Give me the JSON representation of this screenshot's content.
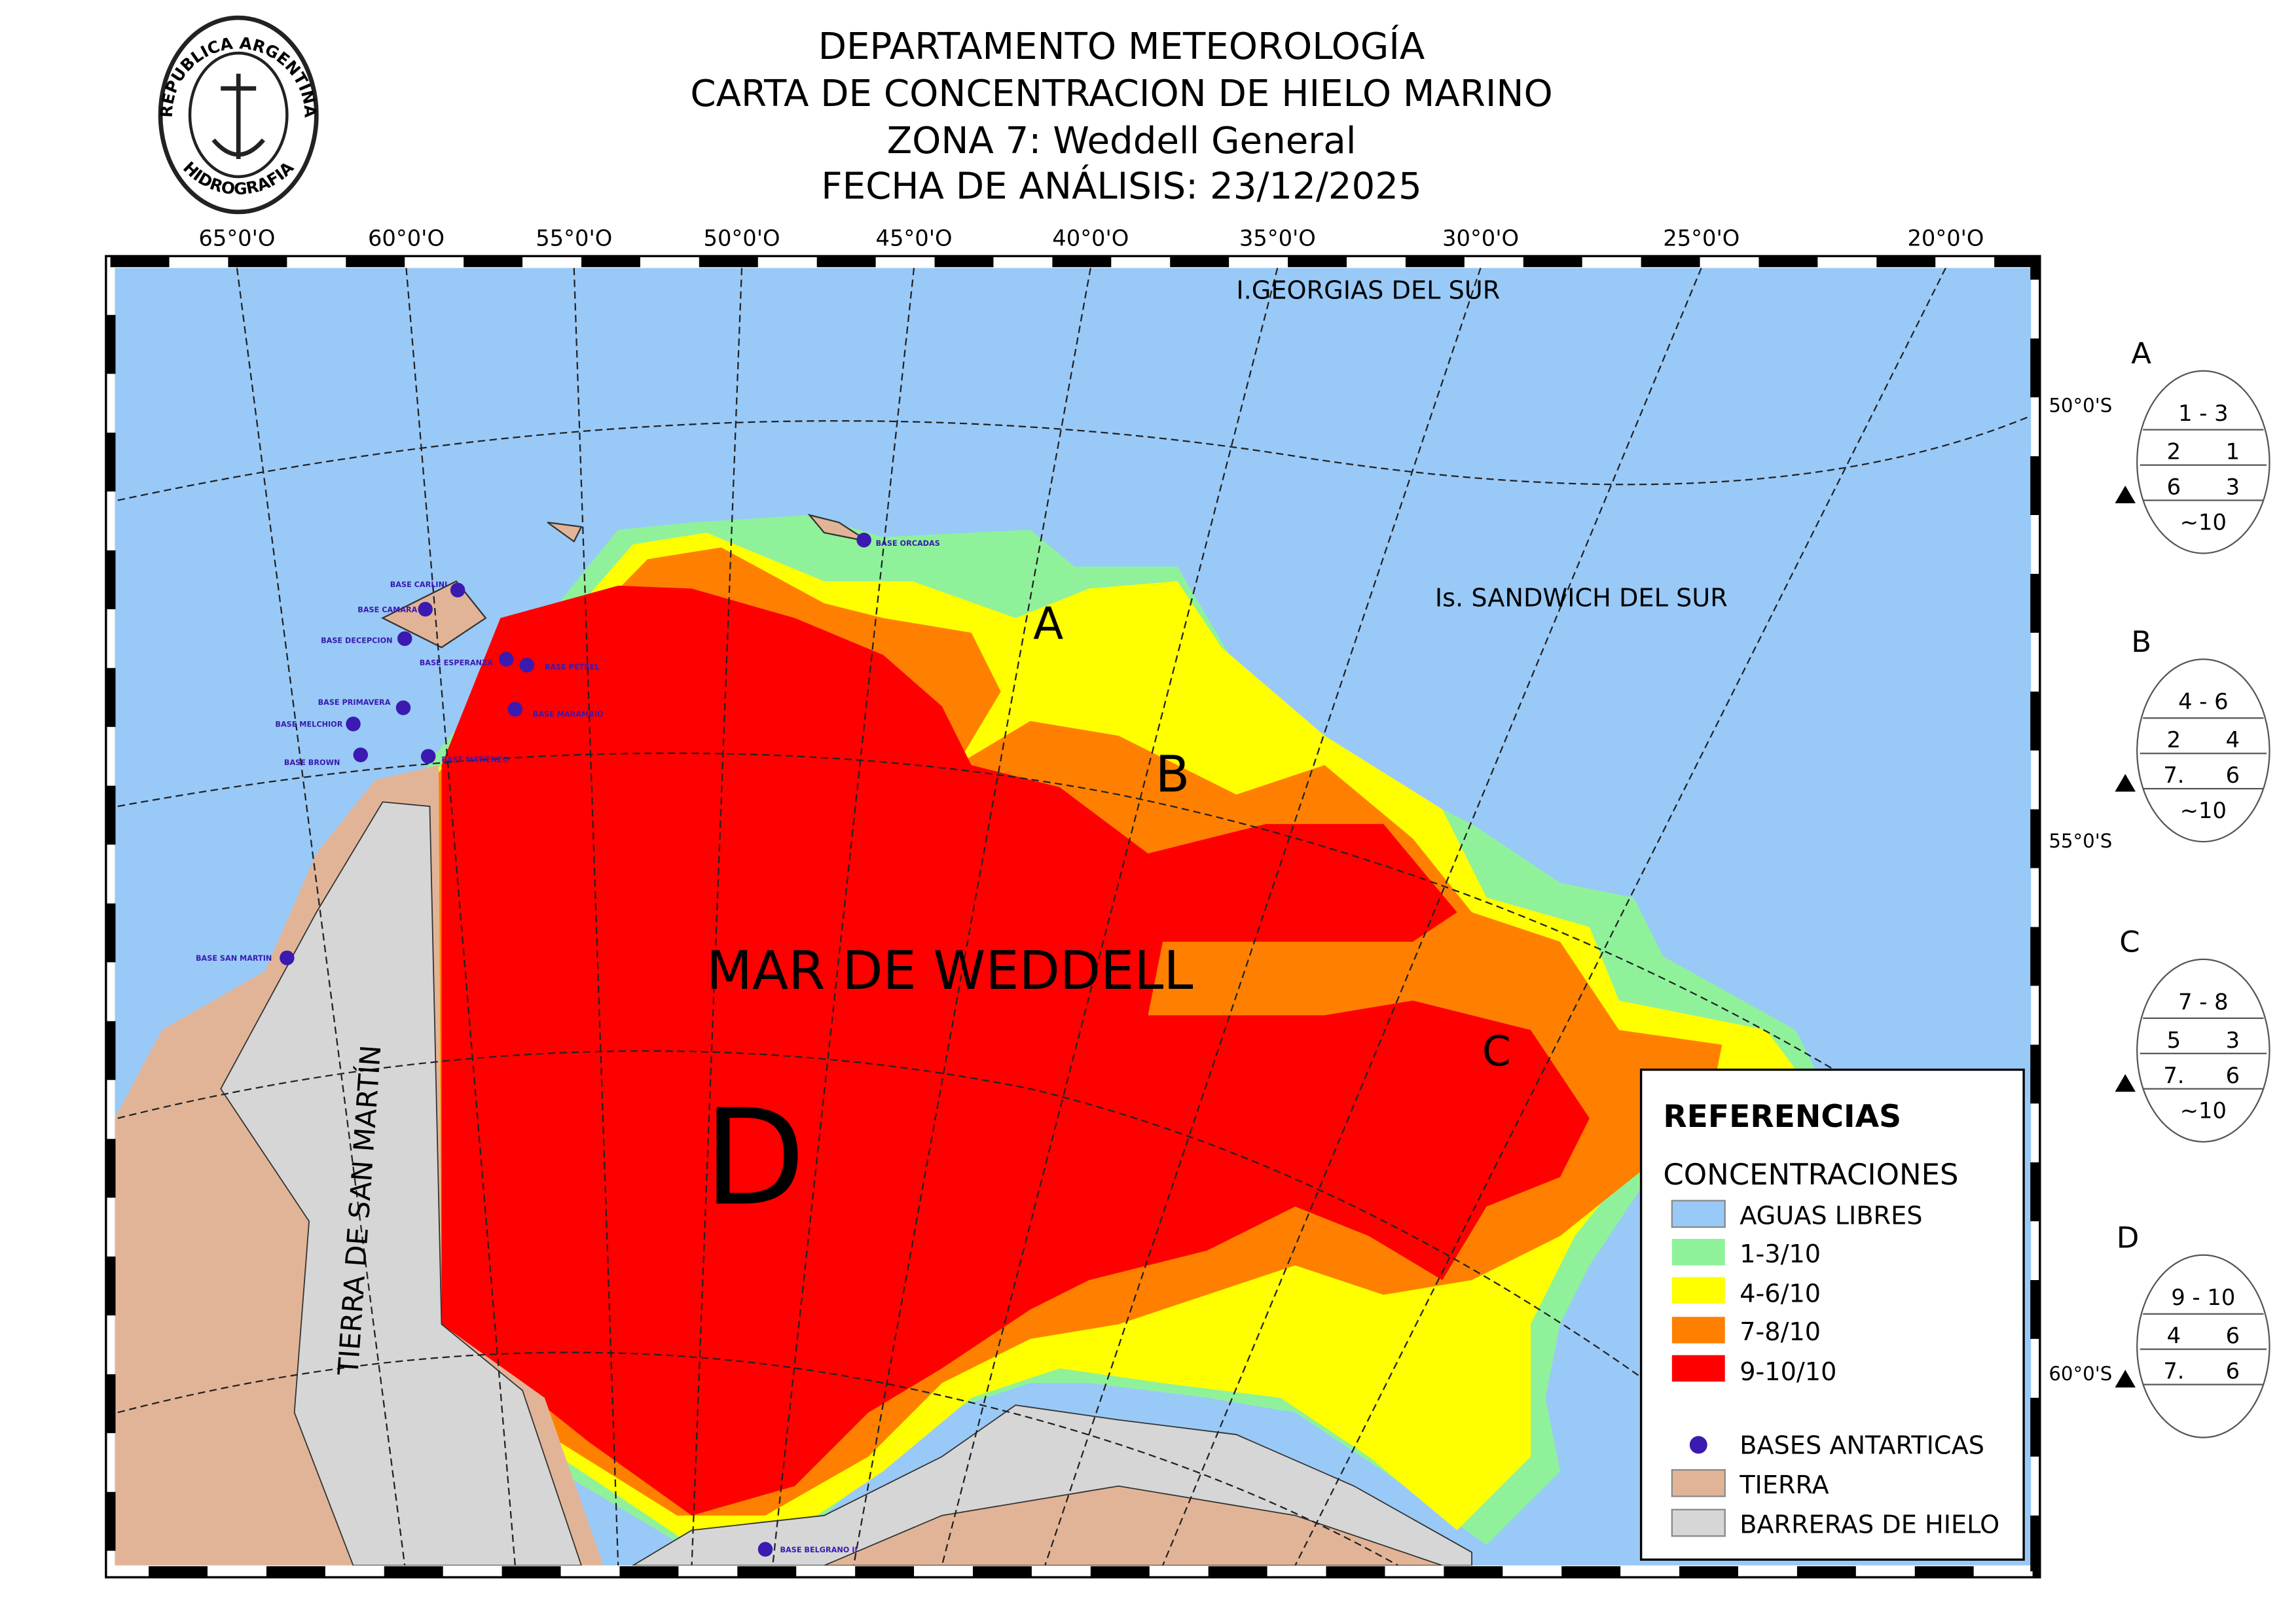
{
  "header": {
    "lines": [
      "DEPARTAMENTO METEOROLOGÍA",
      "CARTA DE CONCENTRACION DE HIELO MARINO",
      "ZONA 7: Weddell General",
      "FECHA DE ANÁLISIS: 23/12/2025"
    ]
  },
  "logo": {
    "top": "REPUBLICA ARGENTINA",
    "bottom": "HIDROGRAFIA"
  },
  "map": {
    "longitudes": [
      "65°0'O",
      "60°0'O",
      "55°0'O",
      "50°0'O",
      "45°0'O",
      "40°0'O",
      "35°0'O",
      "30°0'O",
      "25°0'O",
      "20°0'O"
    ],
    "latitudes": [
      "50°0'S",
      "55°0'S",
      "60°0'S"
    ],
    "places": [
      "I.GEORGIAS DEL SUR",
      "Is. SANDWICH DEL SUR",
      "MAR DE WEDDELL",
      "TIERRA DE SAN MARTÍN"
    ],
    "zones": [
      "A",
      "B",
      "C",
      "D"
    ],
    "bases": [
      "BASE ORCADAS",
      "BASE CARLINI",
      "BASE CAMARA",
      "BASE DECEPCION",
      "BASE ESPERANZA",
      "BASE PETREL",
      "BASE PRIMAVERA",
      "BASE MARAMBIO",
      "BASE MELCHIOR",
      "BASE BROWN",
      "BASE MATIENZO",
      "BASE SAN MARTIN",
      "BASE BELGRANO II"
    ]
  },
  "egg_codes": [
    {
      "zone": "A",
      "total": "1 - 3",
      "partial": [
        "2",
        "1"
      ],
      "stage": [
        "6",
        "3"
      ],
      "form": "~10"
    },
    {
      "zone": "B",
      "total": "4 - 6",
      "partial": [
        "2",
        "4"
      ],
      "stage": [
        "7.",
        "6"
      ],
      "form": "~10"
    },
    {
      "zone": "C",
      "total": "7 - 8",
      "partial": [
        "5",
        "3"
      ],
      "stage": [
        "7.",
        "6"
      ],
      "form": "~10"
    },
    {
      "zone": "D",
      "total": "9 - 10",
      "partial": [
        "4",
        "6"
      ],
      "stage": [
        "7.",
        "6"
      ]
    }
  ],
  "legend": {
    "title": "REFERENCIAS",
    "subtitle": "CONCENTRACIONES",
    "items": [
      "AGUAS LIBRES",
      "1-3/10",
      "4-6/10",
      "7-8/10",
      "9-10/10",
      "BASES ANTARTICAS",
      "TIERRA",
      "BARRERAS DE HIELO"
    ]
  }
}
